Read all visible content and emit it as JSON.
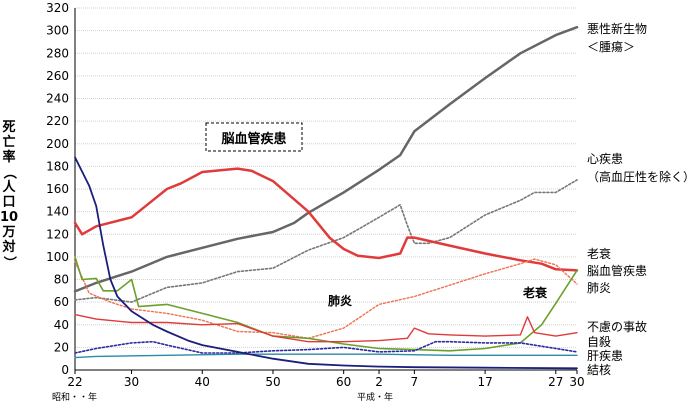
{
  "chart_data": {
    "type": "line",
    "ylabel_chars": [
      "死",
      "亡",
      "率",
      "（",
      "人",
      "口",
      "10",
      "万",
      "対",
      "）"
    ],
    "ylim": [
      0,
      320
    ],
    "yticks": [
      "0",
      "20",
      "40",
      "60",
      "80",
      "100",
      "120",
      "140",
      "160",
      "180",
      "200",
      "220",
      "240",
      "260",
      "280",
      "300",
      "320"
    ],
    "grid": true,
    "x_range": [
      1947,
      2018
    ],
    "x_ticks": [
      {
        "x": 1947,
        "label": "22"
      },
      {
        "x": 1955,
        "label": "30"
      },
      {
        "x": 1965,
        "label": "40"
      },
      {
        "x": 1975,
        "label": "50"
      },
      {
        "x": 1985,
        "label": "60"
      },
      {
        "x": 1990,
        "label": "2"
      },
      {
        "x": 1995,
        "label": "7"
      },
      {
        "x": 2005,
        "label": "17"
      },
      {
        "x": 2015,
        "label": "27"
      },
      {
        "x": 2018,
        "label": "30"
      }
    ],
    "era_labels": {
      "showa": "昭和・・年",
      "heisei": "平成・年"
    },
    "annotations": {
      "cerebro_box": "脳血管疾患",
      "pneumonia": "肺炎",
      "senility": "老衰"
    },
    "series": [
      {
        "name": "悪性新生物\n＜腫瘍＞",
        "color": "#666666",
        "width": 2.5,
        "dash": "",
        "points": [
          [
            1947,
            69.5
          ],
          [
            1950,
            77
          ],
          [
            1955,
            87
          ],
          [
            1960,
            100
          ],
          [
            1965,
            108
          ],
          [
            1970,
            116
          ],
          [
            1975,
            122
          ],
          [
            1978,
            130
          ],
          [
            1980,
            139
          ],
          [
            1985,
            157
          ],
          [
            1990,
            177
          ],
          [
            1993,
            190
          ],
          [
            1995,
            211
          ],
          [
            2000,
            235
          ],
          [
            2005,
            258
          ],
          [
            2010,
            280
          ],
          [
            2015,
            296
          ],
          [
            2018,
            303
          ]
        ]
      },
      {
        "name": "心疾患\n（高血圧性を除く）",
        "color": "#777777",
        "width": 1.6,
        "dash": "2,2",
        "points": [
          [
            1947,
            62
          ],
          [
            1950,
            64
          ],
          [
            1955,
            60
          ],
          [
            1960,
            73
          ],
          [
            1965,
            77
          ],
          [
            1970,
            87
          ],
          [
            1975,
            90
          ],
          [
            1980,
            106
          ],
          [
            1985,
            117
          ],
          [
            1990,
            135
          ],
          [
            1993,
            146
          ],
          [
            1994,
            128
          ],
          [
            1995,
            112
          ],
          [
            1997,
            112
          ],
          [
            2000,
            117
          ],
          [
            2005,
            137
          ],
          [
            2010,
            150
          ],
          [
            2012,
            157
          ],
          [
            2015,
            157
          ],
          [
            2018,
            168
          ]
        ]
      },
      {
        "name": "脳血管疾患",
        "color": "#e03a3a",
        "width": 2.5,
        "dash": "",
        "points": [
          [
            1947,
            130
          ],
          [
            1948,
            120
          ],
          [
            1950,
            127
          ],
          [
            1955,
            135
          ],
          [
            1958,
            150
          ],
          [
            1960,
            160
          ],
          [
            1962,
            165
          ],
          [
            1965,
            175
          ],
          [
            1970,
            178
          ],
          [
            1972,
            176
          ],
          [
            1975,
            167
          ],
          [
            1980,
            140
          ],
          [
            1983,
            117
          ],
          [
            1985,
            107
          ],
          [
            1987,
            101
          ],
          [
            1990,
            99
          ],
          [
            1993,
            103
          ],
          [
            1994,
            117
          ],
          [
            1995,
            117
          ],
          [
            2000,
            110
          ],
          [
            2005,
            103
          ],
          [
            2010,
            97
          ],
          [
            2013,
            94
          ],
          [
            2015,
            89
          ],
          [
            2018,
            88
          ]
        ]
      },
      {
        "name": "肺炎",
        "color": "#f07050",
        "width": 1.4,
        "dash": "2,2",
        "points": [
          [
            1947,
            96
          ],
          [
            1949,
            68
          ],
          [
            1952,
            60
          ],
          [
            1955,
            54
          ],
          [
            1960,
            50
          ],
          [
            1965,
            44
          ],
          [
            1970,
            34
          ],
          [
            1975,
            33
          ],
          [
            1980,
            28
          ],
          [
            1985,
            37
          ],
          [
            1990,
            58
          ],
          [
            1995,
            65
          ],
          [
            2000,
            75
          ],
          [
            2005,
            85
          ],
          [
            2010,
            94
          ],
          [
            2012,
            98
          ],
          [
            2015,
            93
          ],
          [
            2018,
            76
          ]
        ]
      },
      {
        "name": "老衰",
        "color": "#6aa02a",
        "width": 1.6,
        "dash": "",
        "points": [
          [
            1947,
            100
          ],
          [
            1948,
            80
          ],
          [
            1950,
            81
          ],
          [
            1951,
            70
          ],
          [
            1953,
            70
          ],
          [
            1955,
            80
          ],
          [
            1956,
            56
          ],
          [
            1960,
            58
          ],
          [
            1965,
            50
          ],
          [
            1970,
            42
          ],
          [
            1975,
            30
          ],
          [
            1980,
            28
          ],
          [
            1985,
            23
          ],
          [
            1990,
            19
          ],
          [
            1995,
            18
          ],
          [
            2000,
            17
          ],
          [
            2005,
            19
          ],
          [
            2010,
            24
          ],
          [
            2013,
            40
          ],
          [
            2015,
            59
          ],
          [
            2018,
            88
          ]
        ]
      },
      {
        "name": "不慮の事故",
        "color": "#e03a3a",
        "width": 1.4,
        "dash": "",
        "points": [
          [
            1947,
            49
          ],
          [
            1950,
            45
          ],
          [
            1955,
            42
          ],
          [
            1960,
            42
          ],
          [
            1965,
            40
          ],
          [
            1970,
            41
          ],
          [
            1975,
            30
          ],
          [
            1980,
            25
          ],
          [
            1985,
            25
          ],
          [
            1990,
            26
          ],
          [
            1994,
            28
          ],
          [
            1995,
            37
          ],
          [
            1997,
            32
          ],
          [
            2000,
            31
          ],
          [
            2005,
            30
          ],
          [
            2010,
            31
          ],
          [
            2011,
            47
          ],
          [
            2012,
            33
          ],
          [
            2015,
            30
          ],
          [
            2018,
            33
          ]
        ]
      },
      {
        "name": "自殺",
        "color": "#2a2aa0",
        "width": 1.6,
        "dash": "2,2",
        "points": [
          [
            1947,
            15
          ],
          [
            1950,
            19
          ],
          [
            1955,
            24
          ],
          [
            1958,
            25
          ],
          [
            1960,
            22
          ],
          [
            1965,
            15
          ],
          [
            1970,
            15
          ],
          [
            1975,
            17
          ],
          [
            1980,
            18
          ],
          [
            1985,
            20
          ],
          [
            1990,
            16
          ],
          [
            1995,
            17
          ],
          [
            1998,
            25
          ],
          [
            2000,
            25
          ],
          [
            2005,
            24
          ],
          [
            2010,
            24
          ],
          [
            2015,
            19
          ],
          [
            2018,
            16
          ]
        ]
      },
      {
        "name": "肝疾患",
        "color": "#2a8aa8",
        "width": 1.4,
        "dash": "",
        "points": [
          [
            1947,
            11
          ],
          [
            1950,
            12
          ],
          [
            1960,
            13
          ],
          [
            1970,
            14
          ],
          [
            1980,
            14
          ],
          [
            1990,
            14
          ],
          [
            2000,
            13
          ],
          [
            2010,
            13
          ],
          [
            2018,
            13
          ]
        ]
      },
      {
        "name": "結核",
        "color": "#1a1f7a",
        "width": 1.8,
        "dash": "",
        "points": [
          [
            1947,
            188
          ],
          [
            1949,
            163
          ],
          [
            1950,
            145
          ],
          [
            1951,
            110
          ],
          [
            1952,
            80
          ],
          [
            1953,
            65
          ],
          [
            1955,
            52
          ],
          [
            1958,
            40
          ],
          [
            1960,
            34
          ],
          [
            1963,
            26
          ],
          [
            1965,
            22
          ],
          [
            1970,
            16
          ],
          [
            1975,
            10
          ],
          [
            1980,
            5.5
          ],
          [
            1985,
            4
          ],
          [
            1990,
            3
          ],
          [
            1995,
            2.5
          ],
          [
            2005,
            2
          ],
          [
            2018,
            1.5
          ]
        ]
      }
    ],
    "legend_labels": [
      {
        "key": "neo1",
        "text": "悪性新生物"
      },
      {
        "key": "neo2",
        "text": "＜腫瘍＞"
      },
      {
        "key": "heart1",
        "text": "心疾患"
      },
      {
        "key": "heart2",
        "text": "（高血圧性を除く）"
      },
      {
        "key": "senility",
        "text": "老衰"
      },
      {
        "key": "cerebro",
        "text": "脳血管疾患"
      },
      {
        "key": "pneumonia",
        "text": "肺炎"
      },
      {
        "key": "accident",
        "text": "不慮の事故"
      },
      {
        "key": "suicide",
        "text": "自殺"
      },
      {
        "key": "liver",
        "text": "肝疾患"
      },
      {
        "key": "tb",
        "text": "結核"
      }
    ]
  }
}
